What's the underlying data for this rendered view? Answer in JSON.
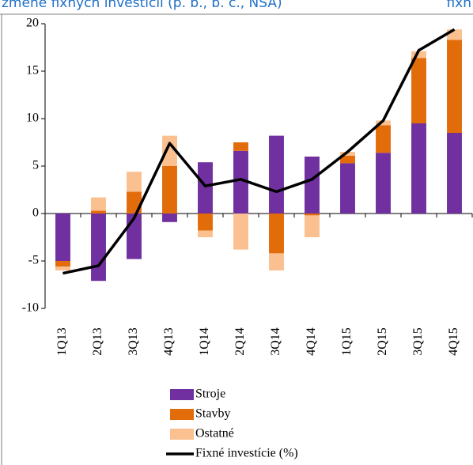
{
  "header": {
    "left": "zmene fixných investícií (p. b., b. c., NSA)",
    "right": "fixn"
  },
  "chart_data": {
    "type": "bar",
    "categories": [
      "1Q13",
      "2Q13",
      "3Q13",
      "4Q13",
      "1Q14",
      "2Q14",
      "3Q14",
      "4Q14",
      "1Q15",
      "2Q15",
      "3Q15",
      "4Q15"
    ],
    "series": [
      {
        "name": "Stroje",
        "color": "#7030a0",
        "values": [
          -5,
          -7.1,
          -4.8,
          -0.9,
          5.4,
          6.6,
          8.2,
          6.0,
          5.3,
          6.4,
          9.5,
          8.5
        ]
      },
      {
        "name": "Stavby",
        "color": "#e36c0a",
        "values": [
          -0.6,
          0.3,
          2.3,
          5,
          -1.8,
          0.9,
          -4.2,
          -0.2,
          0.8,
          2.9,
          6.9,
          9.8
        ]
      },
      {
        "name": "Ostatné",
        "color": "#fac090",
        "values": [
          -0.4,
          1.4,
          2.1,
          3.2,
          -0.7,
          -3.8,
          -1.8,
          -2.3,
          0.4,
          0.5,
          0.7,
          1.1
        ]
      },
      {
        "name": "Fixné investície (%)",
        "color": "#000000",
        "type": "line",
        "values": [
          -6.3,
          -5.5,
          -0.5,
          7.4,
          2.9,
          3.6,
          2.3,
          3.6,
          6.5,
          9.8,
          17.2,
          19.4
        ]
      }
    ],
    "stacked": true,
    "ylim": [
      -10,
      20
    ],
    "yticks": [
      -10,
      -5,
      0,
      5,
      10,
      15,
      20
    ]
  }
}
